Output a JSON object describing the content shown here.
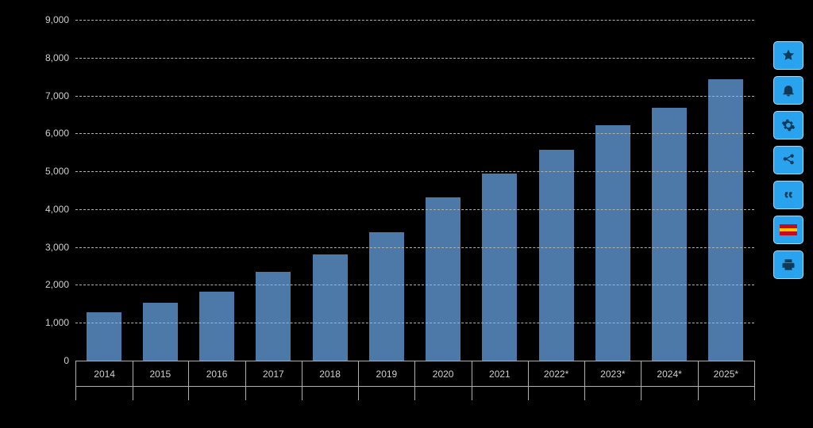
{
  "chart": {
    "type": "bar",
    "background_color": "#000000",
    "bar_color": "#4d79a8",
    "grid_color": "#b0b0b0",
    "axis_line_color": "#b0b0b0",
    "label_color": "#d0d0d0",
    "label_fontsize": 12,
    "bar_width_ratio": 0.62,
    "ylim": [
      0,
      9000
    ],
    "ytick_step": 1000,
    "yticks": [
      {
        "value": 0,
        "label": "0"
      },
      {
        "value": 1000,
        "label": "1,000"
      },
      {
        "value": 2000,
        "label": "2,000"
      },
      {
        "value": 3000,
        "label": "3,000"
      },
      {
        "value": 4000,
        "label": "4,000"
      },
      {
        "value": 5000,
        "label": "5,000"
      },
      {
        "value": 6000,
        "label": "6,000"
      },
      {
        "value": 7000,
        "label": "7,000"
      },
      {
        "value": 8000,
        "label": "8,000"
      },
      {
        "value": 9000,
        "label": "9,000"
      }
    ],
    "categories": [
      "2014",
      "2015",
      "2016",
      "2017",
      "2018",
      "2019",
      "2020",
      "2021",
      "2022*",
      "2023*",
      "2024*",
      "2025*"
    ],
    "values": [
      1280,
      1520,
      1830,
      2340,
      2800,
      3400,
      4320,
      4950,
      5560,
      6220,
      6670,
      7430
    ]
  },
  "toolbar": {
    "button_bg": "#2aa3ef",
    "button_bg_alt": "#2aa3ef",
    "icon_color": "#0b3b59",
    "flag_colors": [
      "#c60b1e",
      "#ffc400",
      "#c60b1e"
    ],
    "items": [
      {
        "name": "star-icon",
        "glyph": "star"
      },
      {
        "name": "bell-icon",
        "glyph": "bell"
      },
      {
        "name": "gear-icon",
        "glyph": "gear"
      },
      {
        "name": "share-icon",
        "glyph": "share"
      },
      {
        "name": "quote-icon",
        "glyph": "quote"
      },
      {
        "name": "flag-icon",
        "glyph": "flag"
      },
      {
        "name": "print-icon",
        "glyph": "print"
      }
    ]
  }
}
